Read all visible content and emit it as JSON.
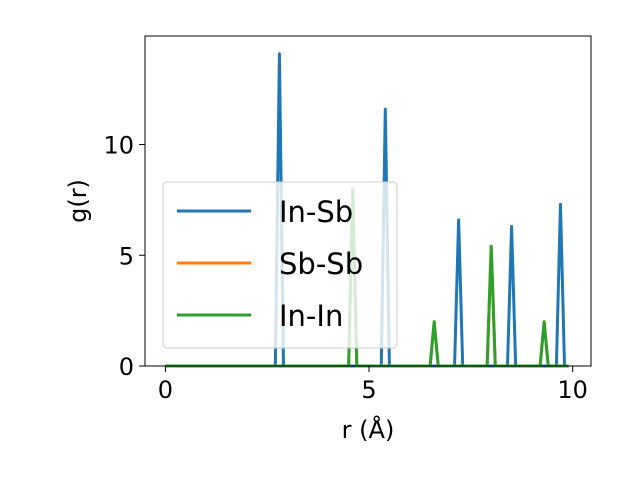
{
  "chart_data": {
    "type": "line",
    "xlabel": "r (Å)",
    "ylabel": "g(r)",
    "xlim": [
      -0.5,
      10.45
    ],
    "ylim": [
      0,
      14.9
    ],
    "xticks": [
      0,
      5,
      10
    ],
    "yticks": [
      0,
      5,
      10
    ],
    "grid": false,
    "legend_position": "center-left",
    "series": [
      {
        "name": "In-Sb",
        "color": "#1f77b4",
        "x": [
          0,
          2.7,
          2.8,
          2.9,
          5.3,
          5.4,
          5.5,
          7.1,
          7.2,
          7.3,
          8.4,
          8.5,
          8.6,
          9.6,
          9.7,
          9.8,
          9.9
        ],
        "y": [
          0,
          0,
          14.1,
          0,
          0,
          11.6,
          0,
          0,
          6.6,
          0,
          0,
          6.3,
          0,
          0,
          7.3,
          0,
          0
        ]
      },
      {
        "name": "Sb-Sb",
        "color": "#ff7f0e",
        "x": [
          0,
          4.5,
          4.6,
          4.7,
          6.5,
          6.6,
          6.7,
          7.9,
          8.0,
          8.1,
          9.2,
          9.3,
          9.4,
          9.9
        ],
        "y": [
          0,
          0,
          8.0,
          0,
          0,
          2.0,
          0,
          0,
          5.4,
          0,
          0,
          2.0,
          0,
          0
        ]
      },
      {
        "name": "In-In",
        "color": "#2ca02c",
        "x": [
          0,
          4.5,
          4.6,
          4.7,
          6.5,
          6.6,
          6.7,
          7.9,
          8.0,
          8.1,
          9.2,
          9.3,
          9.4,
          9.9
        ],
        "y": [
          0,
          0,
          8.0,
          0,
          0,
          2.0,
          0,
          0,
          5.4,
          0,
          0,
          2.0,
          0,
          0
        ]
      }
    ]
  }
}
